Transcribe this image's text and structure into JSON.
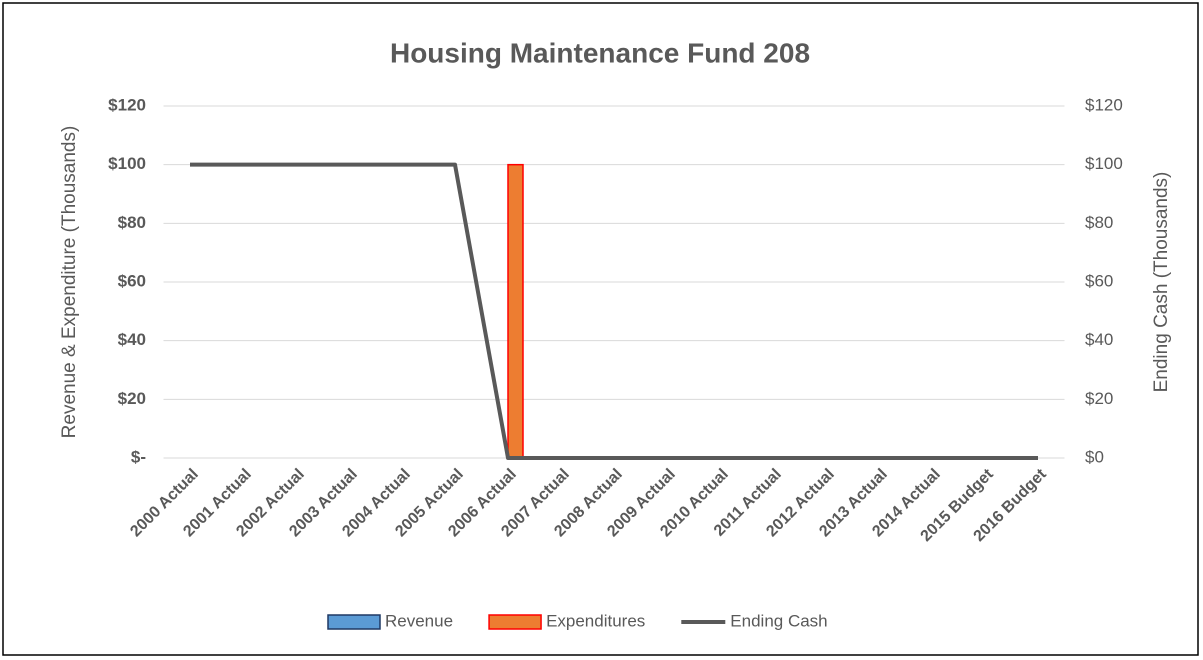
{
  "chart_data": {
    "type": "bar_line",
    "title": "Housing Maintenance Fund 208",
    "y_label": "Revenue & Expenditure (Thousands)",
    "y2_label": "Ending Cash (Thousands)",
    "categories": [
      "2000 Actual",
      "2001 Actual",
      "2002 Actual",
      "2003 Actual",
      "2004 Actual",
      "2005 Actual",
      "2006 Actual",
      "2007 Actual",
      "2008 Actual",
      "2009 Actual",
      "2010 Actual",
      "2011 Actual",
      "2012 Actual",
      "2013 Actual",
      "2014 Actual",
      "2015 Budget",
      "2016 Budget"
    ],
    "series": [
      {
        "name": "Revenue",
        "type": "bar",
        "color": "#5b9bd5",
        "edge": "#1f3864",
        "values": [
          0,
          0,
          0,
          0,
          0,
          0,
          0,
          0,
          0,
          0,
          0,
          0,
          0,
          0,
          0,
          0,
          0
        ]
      },
      {
        "name": "Expenditures",
        "type": "bar",
        "color": "#ed7d31",
        "edge": "#ff0000",
        "values": [
          0,
          0,
          0,
          0,
          0,
          0,
          100,
          0,
          0,
          0,
          0,
          0,
          0,
          0,
          0,
          0,
          0
        ]
      },
      {
        "name": "Ending Cash",
        "type": "line",
        "axis": "y2",
        "color": "#595959",
        "values": [
          100,
          100,
          100,
          100,
          100,
          100,
          0,
          0,
          0,
          0,
          0,
          0,
          0,
          0,
          0,
          0,
          0
        ]
      }
    ],
    "ylim": [
      0,
      120
    ],
    "yticks": [
      {
        "value": 0,
        "label": "$-"
      },
      {
        "value": 20,
        "label": "$20"
      },
      {
        "value": 40,
        "label": "$40"
      },
      {
        "value": 60,
        "label": "$60"
      },
      {
        "value": 80,
        "label": "$80"
      },
      {
        "value": 100,
        "label": "$100"
      },
      {
        "value": 120,
        "label": "$120"
      }
    ],
    "y2lim": [
      0,
      120
    ],
    "y2ticks": [
      {
        "value": 0,
        "label": "$0"
      },
      {
        "value": 20,
        "label": "$20"
      },
      {
        "value": 40,
        "label": "$40"
      },
      {
        "value": 60,
        "label": "$60"
      },
      {
        "value": 80,
        "label": "$80"
      },
      {
        "value": 100,
        "label": "$100"
      },
      {
        "value": 120,
        "label": "$120"
      }
    ],
    "grid": true,
    "legend": "bottom"
  }
}
